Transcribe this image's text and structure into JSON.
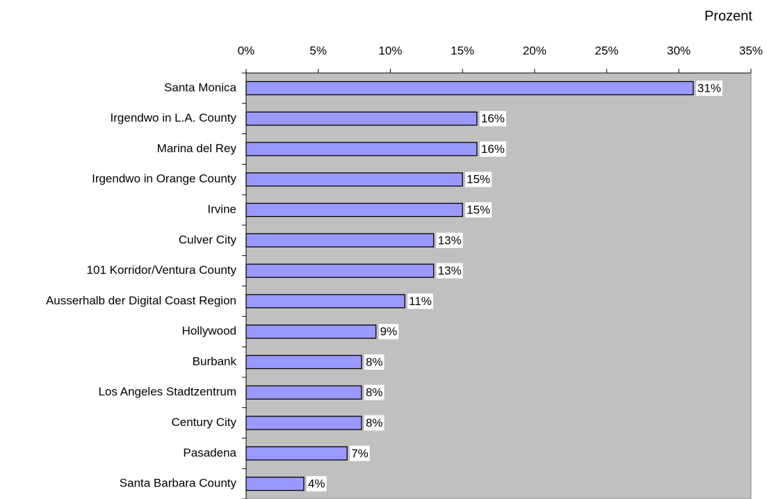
{
  "chart_data": {
    "type": "bar",
    "orientation": "horizontal",
    "x_label": "Prozent",
    "categories": [
      "Santa Monica",
      "Irgendwo in L.A. County",
      "Marina del Rey",
      "Irgendwo in Orange County",
      "Irvine",
      "Culver City",
      "101 Korridor/Ventura County",
      "Ausserhalb der Digital Coast Region",
      "Hollywood",
      "Burbank",
      "Los Angeles Stadtzentrum",
      "Century City",
      "Pasadena",
      "Santa Barbara County"
    ],
    "values": [
      31,
      16,
      16,
      15,
      15,
      13,
      13,
      11,
      9,
      8,
      8,
      8,
      7,
      4
    ],
    "value_labels": [
      "31%",
      "16%",
      "16%",
      "15%",
      "15%",
      "13%",
      "13%",
      "11%",
      "9%",
      "8%",
      "8%",
      "8%",
      "7%",
      "4%"
    ],
    "color": "#9999ff",
    "plot_background": "#c0c0c0",
    "xlim": [
      0,
      35
    ],
    "xticks": [
      {
        "value": 0,
        "label": "0%"
      },
      {
        "value": 5,
        "label": "5%"
      },
      {
        "value": 10,
        "label": "10%"
      },
      {
        "value": 15,
        "label": "15%"
      },
      {
        "value": 20,
        "label": "20%"
      },
      {
        "value": 25,
        "label": "25%"
      },
      {
        "value": 30,
        "label": "30%"
      },
      {
        "value": 35,
        "label": "35%"
      }
    ]
  }
}
